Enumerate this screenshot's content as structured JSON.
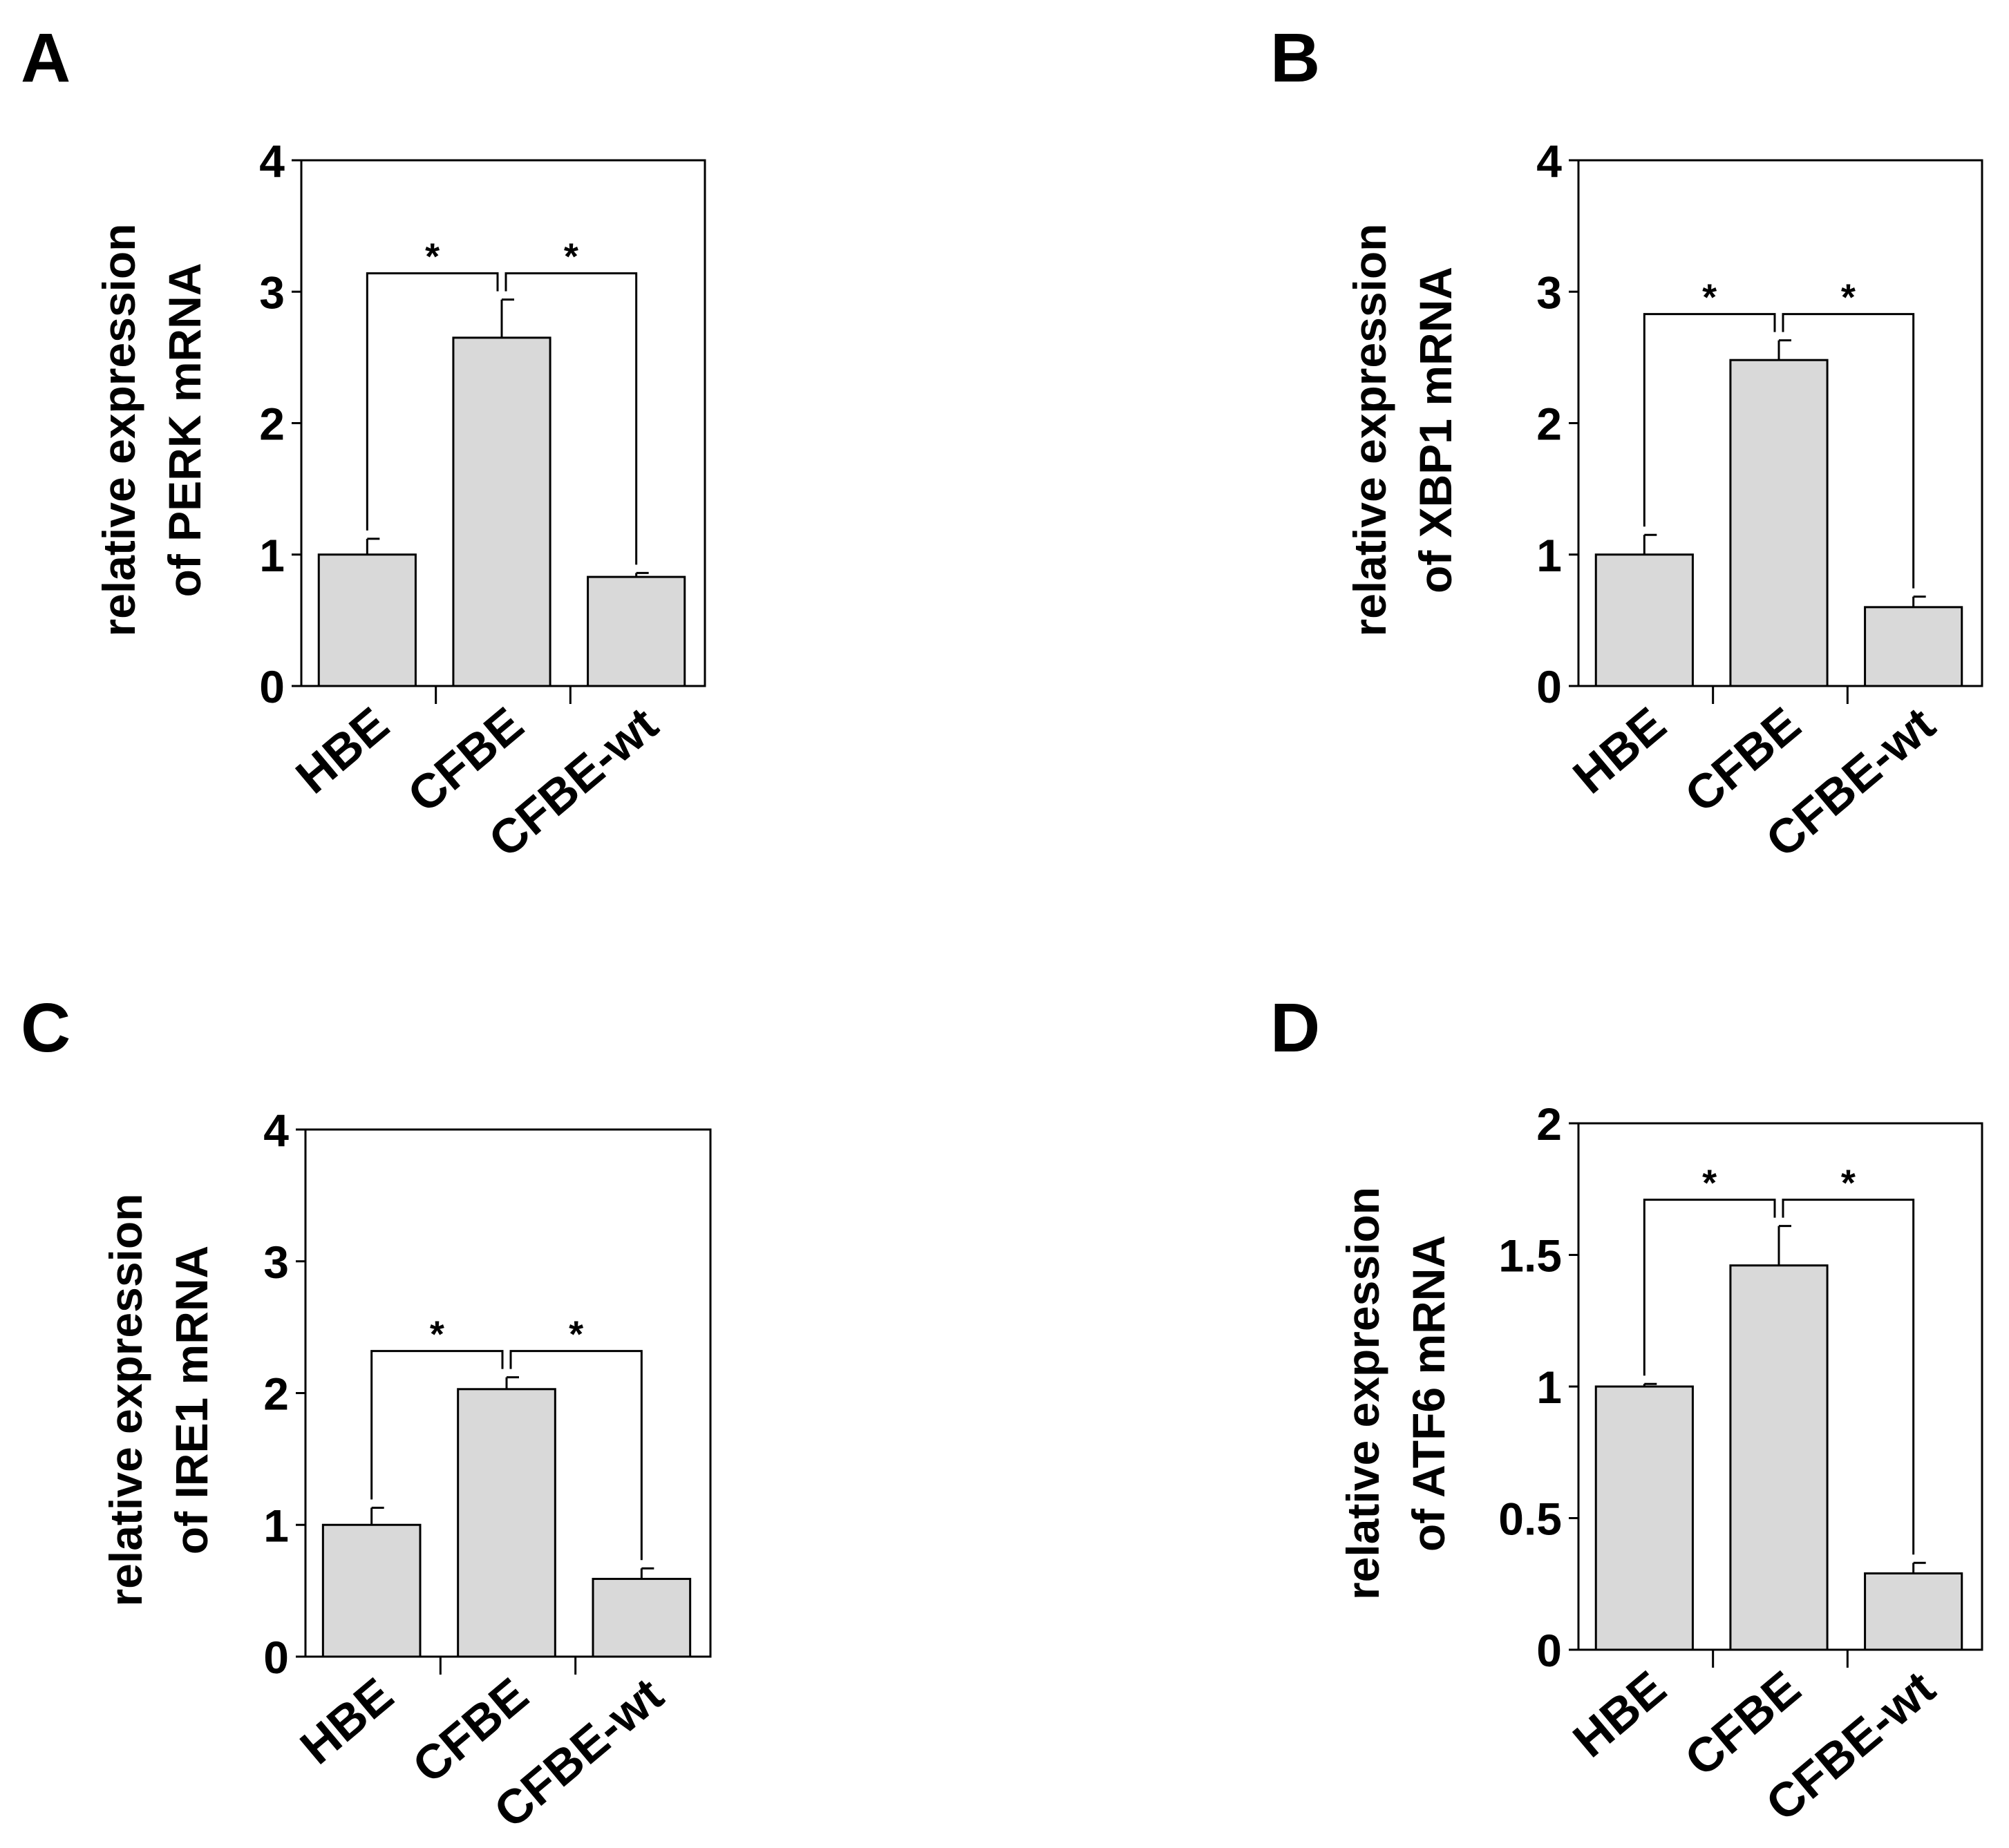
{
  "chart_data": [
    {
      "panel_label": "A",
      "type": "bar",
      "categories": [
        "HBE",
        "CFBE",
        "CFBE-wt"
      ],
      "values": [
        1.0,
        2.65,
        0.83
      ],
      "errors": [
        0.12,
        0.29,
        0.03
      ],
      "ylabel_line1": "relative expression",
      "ylabel_line2": "of PERK mRNA",
      "ylim": [
        0,
        4
      ],
      "yticks": [
        "0",
        "1",
        "2",
        "3",
        "4"
      ],
      "significance": [
        {
          "between": [
            0,
            1
          ],
          "label": "*"
        },
        {
          "between": [
            1,
            2
          ],
          "label": "*"
        }
      ]
    },
    {
      "panel_label": "B",
      "type": "bar",
      "categories": [
        "HBE",
        "CFBE",
        "CFBE-wt"
      ],
      "values": [
        1.0,
        2.48,
        0.6
      ],
      "errors": [
        0.15,
        0.15,
        0.08
      ],
      "ylabel_line1": "relative expression",
      "ylabel_line2": "of XBP1 mRNA",
      "ylim": [
        0,
        4
      ],
      "yticks": [
        "0",
        "1",
        "2",
        "3",
        "4"
      ],
      "significance": [
        {
          "between": [
            0,
            1
          ],
          "label": "*"
        },
        {
          "between": [
            1,
            2
          ],
          "label": "*"
        }
      ]
    },
    {
      "panel_label": "C",
      "type": "bar",
      "categories": [
        "HBE",
        "CFBE",
        "CFBE-wt"
      ],
      "values": [
        1.0,
        2.03,
        0.59
      ],
      "errors": [
        0.13,
        0.09,
        0.08
      ],
      "ylabel_line1": "relative expression",
      "ylabel_line2": "of IRE1 mRNA",
      "ylim": [
        0,
        4
      ],
      "yticks": [
        "0",
        "1",
        "2",
        "3",
        "4"
      ],
      "significance": [
        {
          "between": [
            0,
            1
          ],
          "label": "*"
        },
        {
          "between": [
            1,
            2
          ],
          "label": "*"
        }
      ]
    },
    {
      "panel_label": "D",
      "type": "bar",
      "categories": [
        "HBE",
        "CFBE",
        "CFBE-wt"
      ],
      "values": [
        1.0,
        1.46,
        0.29
      ],
      "errors": [
        0.01,
        0.15,
        0.04
      ],
      "ylabel_line1": "relative expression",
      "ylabel_line2": "of ATF6 mRNA",
      "ylim": [
        0,
        2
      ],
      "yticks": [
        "0",
        "0.5",
        "1",
        "1.5",
        "2"
      ],
      "significance": [
        {
          "between": [
            0,
            1
          ],
          "label": "*"
        },
        {
          "between": [
            1,
            2
          ],
          "label": "*"
        }
      ]
    }
  ],
  "colors": {
    "bar_fill": "#d9d9d9",
    "stroke": "#000000"
  }
}
